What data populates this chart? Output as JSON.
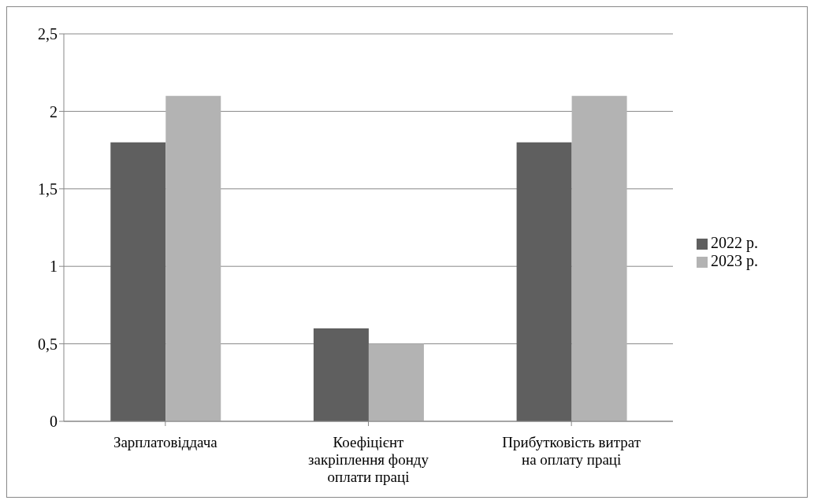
{
  "chart_data": {
    "type": "bar",
    "categories": [
      "Зарплатовіддача",
      "Коефіцієнт закріплення фонду оплати праці",
      "Прибутковість витрат на оплату праці"
    ],
    "series": [
      {
        "name": "2022 р.",
        "color": "#5f5f5f",
        "values": [
          1.8,
          0.6,
          1.8
        ]
      },
      {
        "name": "2023 р.",
        "color": "#b3b3b3",
        "values": [
          2.1,
          0.5,
          2.1
        ]
      }
    ],
    "ylim": [
      0,
      2.5
    ],
    "yticks": [
      0,
      {
        "value": 0.5,
        "label": "0,5"
      },
      1,
      {
        "value": 1.5,
        "label": "1,5"
      },
      2,
      {
        "value": 2.5,
        "label": "2,5"
      }
    ],
    "grid": "y",
    "legend": "right"
  }
}
